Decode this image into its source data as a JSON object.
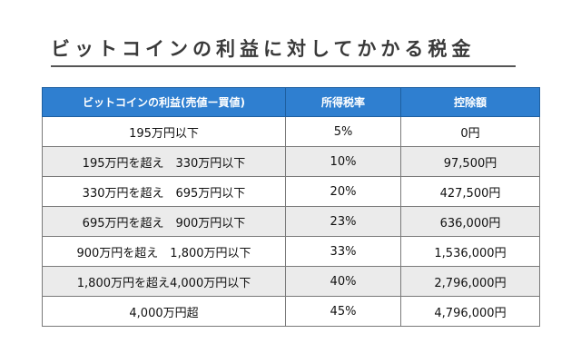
{
  "title": "ビットコインの利益に対してかかる税金",
  "table": {
    "headers": [
      "ビットコインの利益(売値ー買値)",
      "所得税率",
      "控除額"
    ],
    "rows": [
      [
        "195万円以下",
        "5%",
        "0円"
      ],
      [
        "195万円を超え　330万円以下",
        "10%",
        "97,500円"
      ],
      [
        "330万円を超え　695万円以下",
        "20%",
        "427,500円"
      ],
      [
        "695万円を超え　900万円以下",
        "23%",
        "636,000円"
      ],
      [
        "900万円を超え　1,800万円以下",
        "33%",
        "1,536,000円"
      ],
      [
        "1,800万円を超え4,000万円以下",
        "40%",
        "2,796,000円"
      ],
      [
        "4,000万円超",
        "45%",
        "4,796,000円"
      ]
    ]
  },
  "colors": {
    "header_bg": "#2f7fd0",
    "stripe_bg": "#ebebeb"
  }
}
